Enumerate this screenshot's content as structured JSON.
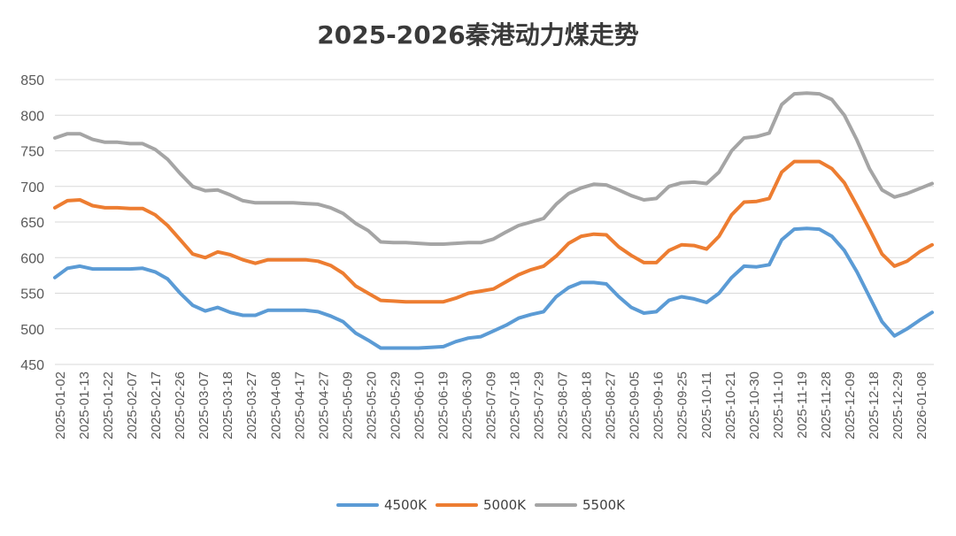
{
  "chart_data": {
    "type": "line",
    "title": "2025-2026秦港动力煤走势",
    "xlabel": "",
    "ylabel": "",
    "ylim": [
      450,
      850
    ],
    "yticks": [
      450,
      500,
      550,
      600,
      650,
      700,
      750,
      800,
      850
    ],
    "grid": true,
    "legend_position": "bottom",
    "x_tick_labels": [
      "2025-01-02",
      "2025-01-13",
      "2025-01-22",
      "2025-02-07",
      "2025-02-17",
      "2025-02-26",
      "2025-03-07",
      "2025-03-18",
      "2025-03-27",
      "2025-04-08",
      "2025-04-17",
      "2025-04-27",
      "2025-05-09",
      "2025-05-20",
      "2025-05-29",
      "2025-06-10",
      "2025-06-19",
      "2025-06-30",
      "2025-07-09",
      "2025-07-18",
      "2025-07-29",
      "2025-08-07",
      "2025-08-18",
      "2025-08-27",
      "2025-09-05",
      "2025-09-16",
      "2025-09-25",
      "2025-10-11",
      "2025-10-21",
      "2025-10-30",
      "2025-11-10",
      "2025-11-19",
      "2025-11-28",
      "2025-12-09",
      "2025-12-18",
      "2025-12-29",
      "2026-01-08"
    ],
    "series": [
      {
        "name": "4500K",
        "color": "#5b9bd5",
        "values": [
          572,
          585,
          588,
          584,
          584,
          584,
          584,
          585,
          580,
          570,
          550,
          533,
          525,
          530,
          523,
          519,
          519,
          526,
          526,
          526,
          526,
          524,
          518,
          510,
          494,
          484,
          473,
          473,
          473,
          473,
          474,
          475,
          482,
          487,
          489,
          497,
          505,
          515,
          520,
          524,
          545,
          558,
          565,
          565,
          563,
          545,
          530,
          522,
          524,
          540,
          545,
          542,
          537,
          550,
          572,
          588,
          587,
          590,
          625,
          640,
          641,
          640,
          630,
          610,
          580,
          545,
          510,
          490,
          500,
          512,
          523
        ]
      },
      {
        "name": "5000K",
        "color": "#ed7d31",
        "values": [
          670,
          680,
          681,
          673,
          670,
          670,
          669,
          669,
          660,
          645,
          625,
          605,
          600,
          608,
          604,
          597,
          592,
          597,
          597,
          597,
          597,
          595,
          589,
          578,
          560,
          550,
          540,
          539,
          538,
          538,
          538,
          538,
          543,
          550,
          553,
          556,
          566,
          576,
          583,
          588,
          602,
          620,
          630,
          633,
          632,
          615,
          603,
          593,
          593,
          610,
          618,
          617,
          612,
          630,
          660,
          678,
          679,
          683,
          720,
          735,
          735,
          735,
          725,
          705,
          673,
          640,
          605,
          588,
          595,
          608,
          618
        ]
      },
      {
        "name": "5500K",
        "color": "#a5a5a5",
        "values": [
          768,
          774,
          774,
          766,
          762,
          762,
          760,
          760,
          752,
          738,
          718,
          700,
          694,
          695,
          688,
          680,
          677,
          677,
          677,
          677,
          676,
          675,
          670,
          662,
          648,
          638,
          622,
          621,
          621,
          620,
          619,
          619,
          620,
          621,
          621,
          626,
          636,
          645,
          650,
          655,
          675,
          690,
          698,
          703,
          702,
          695,
          687,
          681,
          683,
          700,
          705,
          706,
          704,
          720,
          750,
          768,
          770,
          775,
          815,
          830,
          831,
          830,
          822,
          800,
          765,
          725,
          695,
          685,
          690,
          697,
          704
        ]
      }
    ]
  }
}
